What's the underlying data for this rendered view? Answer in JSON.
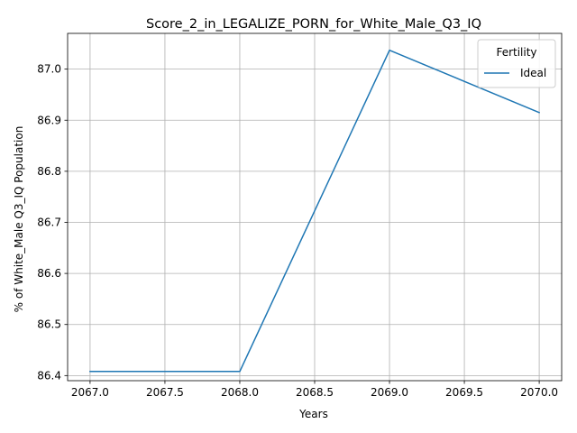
{
  "chart_data": {
    "type": "line",
    "title": "Score_2_in_LEGALIZE_PORN_for_White_Male_Q3_IQ",
    "xlabel": "Years",
    "ylabel": "% of White_Male Q3_IQ Population",
    "x": [
      2067,
      2068,
      2069,
      2070
    ],
    "series": [
      {
        "name": "Ideal",
        "color": "#1f77b4",
        "values": [
          86.408,
          86.408,
          87.037,
          86.915
        ]
      }
    ],
    "xlim": [
      2066.85,
      2070.15
    ],
    "ylim": [
      86.39,
      87.07
    ],
    "x_ticks": [
      2067.0,
      2067.5,
      2068.0,
      2068.5,
      2069.0,
      2069.5,
      2070.0
    ],
    "x_tick_labels": [
      "2067.0",
      "2067.5",
      "2068.0",
      "2068.5",
      "2069.0",
      "2069.5",
      "2070.0"
    ],
    "y_ticks": [
      86.4,
      86.5,
      86.6,
      86.7,
      86.8,
      86.9,
      87.0
    ],
    "y_tick_labels": [
      "86.4",
      "86.5",
      "86.6",
      "86.7",
      "86.8",
      "86.9",
      "87.0"
    ],
    "grid": true,
    "legend": {
      "title": "Fertility",
      "placement": "top-right"
    }
  }
}
